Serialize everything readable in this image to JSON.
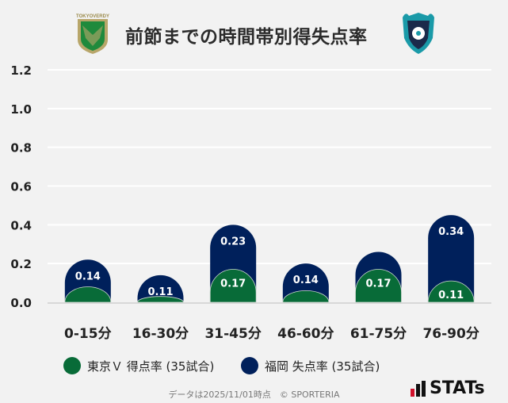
{
  "title": "前節までの時間帯別得失点率",
  "logos": {
    "home": "TOKYO VERDY",
    "away": "Avispa Fukuoka"
  },
  "chart_data": {
    "type": "bar",
    "stacked": true,
    "categories": [
      "0-15分",
      "16-30分",
      "31-45分",
      "46-60分",
      "61-75分",
      "76-90分"
    ],
    "series": [
      {
        "name": "東京Ｖ 得点率 (35試合)",
        "color": "#086b38",
        "values": [
          0.08,
          0.03,
          0.17,
          0.06,
          0.17,
          0.11
        ],
        "labels": [
          "",
          "",
          "0.17",
          "",
          "0.17",
          "0.11"
        ]
      },
      {
        "name": "福岡 失点率 (35試合)",
        "color": "#00205b",
        "values": [
          0.14,
          0.11,
          0.23,
          0.14,
          0.09,
          0.34
        ],
        "labels": [
          "0.14",
          "0.11",
          "0.23",
          "0.14",
          "",
          "0.34"
        ]
      }
    ],
    "yticks": [
      "0.0",
      "0.2",
      "0.4",
      "0.6",
      "0.8",
      "1.0",
      "1.2"
    ],
    "ylim": [
      0,
      1.2
    ],
    "grid": true,
    "legend": "bottom"
  },
  "footer": "データは2025/11/01時点　© SPORTERIA",
  "brand": "STATs"
}
